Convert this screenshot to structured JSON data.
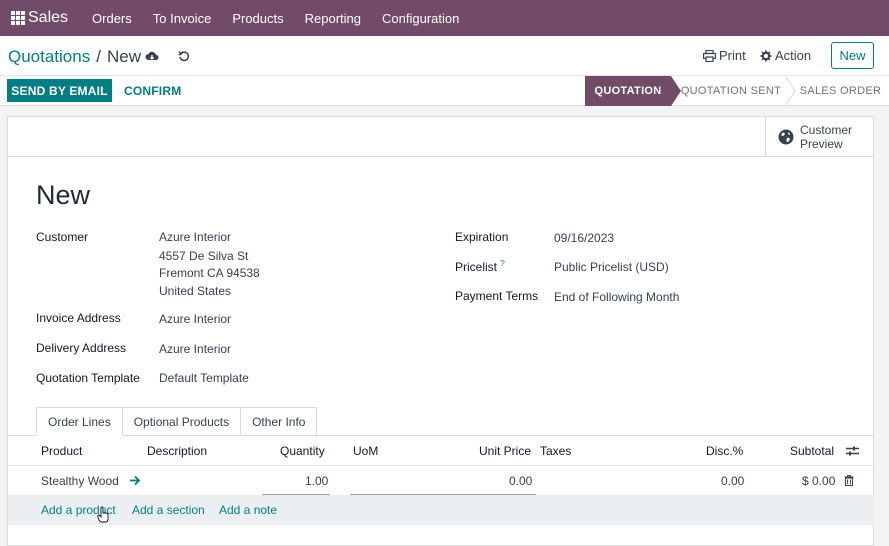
{
  "topbar": {
    "app_name": "Sales",
    "menu": [
      "Orders",
      "To Invoice",
      "Products",
      "Reporting",
      "Configuration"
    ]
  },
  "breadcrumb": {
    "parent": "Quotations",
    "separator": "/",
    "current": "New"
  },
  "actions": {
    "print": "Print",
    "action": "Action",
    "new": "New"
  },
  "statusbar": {
    "send_by_email": "SEND BY EMAIL",
    "confirm": "CONFIRM",
    "stages": [
      "QUOTATION",
      "QUOTATION SENT",
      "SALES ORDER"
    ],
    "active_stage": "QUOTATION"
  },
  "customer_preview": {
    "line1": "Customer",
    "line2": "Preview"
  },
  "form": {
    "title": "New",
    "customer_label": "Customer",
    "customer_name": "Azure Interior",
    "customer_street": "4557 De Silva St",
    "customer_city": "Fremont CA 94538",
    "customer_country": "United States",
    "invoice_address_label": "Invoice Address",
    "invoice_address": "Azure Interior",
    "delivery_address_label": "Delivery Address",
    "delivery_address": "Azure Interior",
    "template_label": "Quotation Template",
    "template": "Default Template",
    "expiration_label": "Expiration",
    "expiration": "09/16/2023",
    "pricelist_label": "Pricelist",
    "pricelist_help": "?",
    "pricelist": "Public Pricelist (USD)",
    "payment_terms_label": "Payment Terms",
    "payment_terms": "End of Following Month"
  },
  "tabs": [
    "Order Lines",
    "Optional Products",
    "Other Info"
  ],
  "order_lines": {
    "headers": [
      "Product",
      "Description",
      "Quantity",
      "UoM",
      "Unit Price",
      "Taxes",
      "Disc.%",
      "Subtotal"
    ],
    "row": {
      "product": "Stealthy Wood",
      "quantity": "1.00",
      "unit_price": "0.00",
      "discount": "0.00",
      "subtotal": "$ 0.00"
    },
    "add_links": [
      "Add a product",
      "Add a section",
      "Add a note"
    ]
  },
  "colors": {
    "brand": "#714b67",
    "accent": "#017e84"
  }
}
